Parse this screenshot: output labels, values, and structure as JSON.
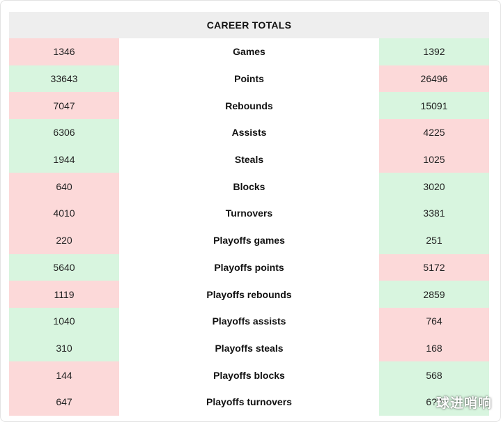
{
  "table": {
    "title": "CAREER TOTALS",
    "colors": {
      "better": "#d8f5df",
      "worse": "#fcd9d9"
    },
    "rows": [
      {
        "stat": "Games",
        "left": "1346",
        "right": "1392",
        "left_better": false
      },
      {
        "stat": "Points",
        "left": "33643",
        "right": "26496",
        "left_better": true
      },
      {
        "stat": "Rebounds",
        "left": "7047",
        "right": "15091",
        "left_better": false
      },
      {
        "stat": "Assists",
        "left": "6306",
        "right": "4225",
        "left_better": true
      },
      {
        "stat": "Steals",
        "left": "1944",
        "right": "1025",
        "left_better": true
      },
      {
        "stat": "Blocks",
        "left": "640",
        "right": "3020",
        "left_better": false
      },
      {
        "stat": "Turnovers",
        "left": "4010",
        "right": "3381",
        "left_better": false
      },
      {
        "stat": "Playoffs games",
        "left": "220",
        "right": "251",
        "left_better": false
      },
      {
        "stat": "Playoffs points",
        "left": "5640",
        "right": "5172",
        "left_better": true
      },
      {
        "stat": "Playoffs rebounds",
        "left": "1119",
        "right": "2859",
        "left_better": false
      },
      {
        "stat": "Playoffs assists",
        "left": "1040",
        "right": "764",
        "left_better": true
      },
      {
        "stat": "Playoffs steals",
        "left": "310",
        "right": "168",
        "left_better": true
      },
      {
        "stat": "Playoffs blocks",
        "left": "144",
        "right": "568",
        "left_better": false
      },
      {
        "stat": "Playoffs turnovers",
        "left": "647",
        "right": "6??",
        "left_better": false
      }
    ]
  },
  "watermark": "球进哨响"
}
